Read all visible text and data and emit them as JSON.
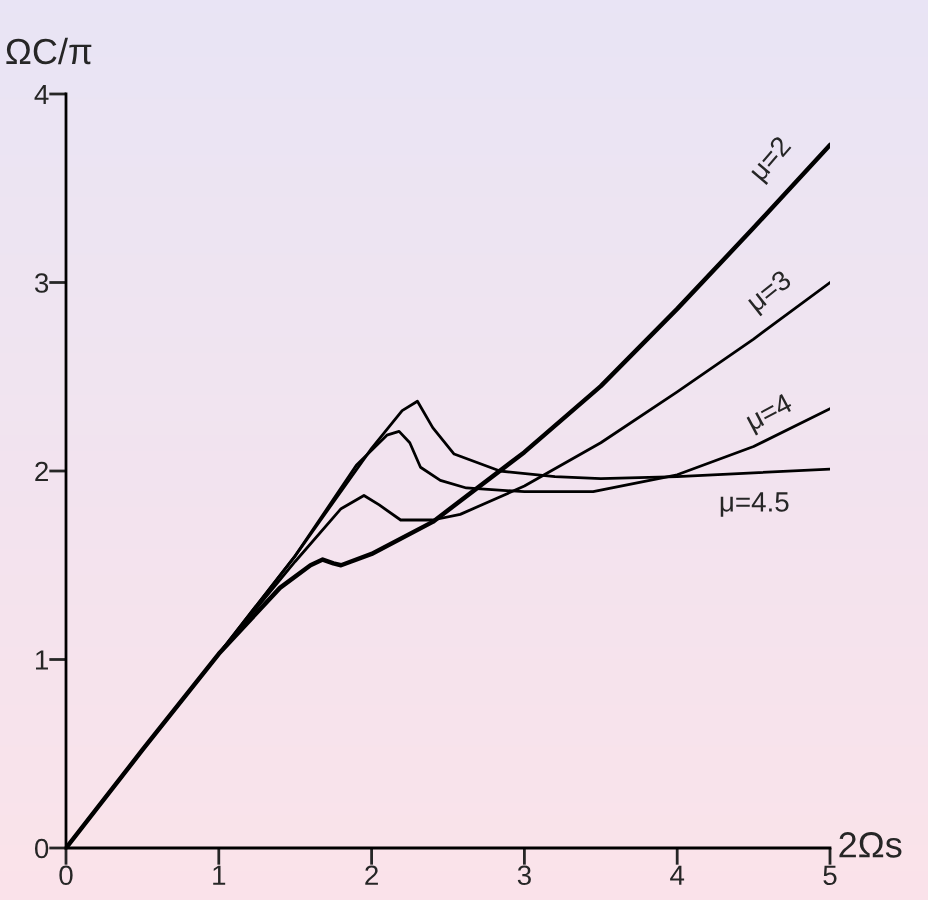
{
  "chart_data": {
    "type": "line",
    "xlabel": "2Ωs",
    "ylabel": "ΩC/π",
    "xlim": [
      0,
      5
    ],
    "ylim": [
      0,
      4
    ],
    "xticks": [
      0,
      1,
      2,
      3,
      4,
      5
    ],
    "yticks": [
      0,
      1,
      2,
      3,
      4
    ],
    "grid": false,
    "legend": false,
    "marker": "none",
    "line_style": "solid",
    "series": [
      {
        "name": "μ=2",
        "color": "#000000",
        "x": [
          0,
          0.5,
          1.0,
          1.4,
          1.6,
          1.68,
          1.75,
          1.8,
          2.0,
          2.4,
          3.0,
          3.5,
          4.0,
          4.5,
          5.0
        ],
        "values": [
          0,
          0.52,
          1.03,
          1.38,
          1.5,
          1.53,
          1.51,
          1.5,
          1.56,
          1.73,
          2.1,
          2.45,
          2.86,
          3.29,
          3.73
        ]
      },
      {
        "name": "μ=3",
        "color": "#000000",
        "x": [
          0,
          0.5,
          1.0,
          1.5,
          1.8,
          1.95,
          2.05,
          2.19,
          2.4,
          2.58,
          3.0,
          3.5,
          4.0,
          4.5,
          5.0
        ],
        "values": [
          0,
          0.52,
          1.03,
          1.52,
          1.8,
          1.87,
          1.82,
          1.74,
          1.74,
          1.77,
          1.92,
          2.15,
          2.42,
          2.7,
          3.0
        ]
      },
      {
        "name": "μ=4",
        "color": "#000000",
        "x": [
          0,
          0.5,
          1.0,
          1.5,
          1.9,
          2.1,
          2.18,
          2.25,
          2.32,
          2.45,
          2.62,
          3.0,
          3.45,
          4.0,
          4.5,
          5.0
        ],
        "values": [
          0,
          0.52,
          1.03,
          1.55,
          2.03,
          2.19,
          2.21,
          2.15,
          2.02,
          1.95,
          1.91,
          1.89,
          1.89,
          1.98,
          2.13,
          2.33
        ]
      },
      {
        "name": "μ=4.5",
        "color": "#000000",
        "x": [
          0,
          0.5,
          1.0,
          1.5,
          2.0,
          2.2,
          2.3,
          2.4,
          2.54,
          2.84,
          3.2,
          3.5,
          4.0,
          4.5,
          5.0
        ],
        "values": [
          0,
          0.52,
          1.03,
          1.55,
          2.12,
          2.32,
          2.37,
          2.23,
          2.09,
          2.0,
          1.97,
          1.96,
          1.97,
          1.99,
          2.01
        ]
      }
    ]
  }
}
